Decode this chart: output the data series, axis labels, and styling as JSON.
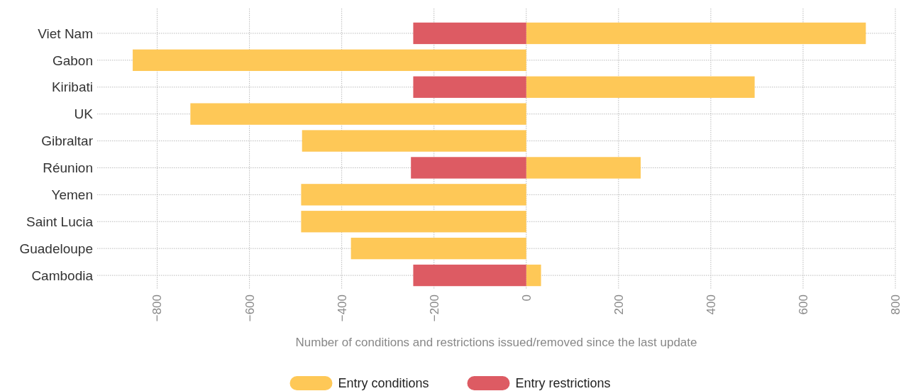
{
  "chart_data": {
    "type": "bar",
    "orientation": "horizontal",
    "xlabel": "Number of conditions and restrictions issued/removed since the last update",
    "categories": [
      "Viet Nam",
      "Gabon",
      "Kiribati",
      "UK",
      "Gibraltar",
      "Réunion",
      "Yemen",
      "Saint Lucia",
      "Guadeloupe",
      "Cambodia"
    ],
    "series": [
      {
        "name": "Entry conditions",
        "color": "#fec857",
        "values": [
          736,
          -853,
          495,
          -728,
          -486,
          248,
          -488,
          -488,
          -380,
          32
        ]
      },
      {
        "name": "Entry restrictions",
        "color": "#dd5b63",
        "values": [
          -245,
          null,
          -245,
          null,
          null,
          -250,
          null,
          null,
          null,
          -245
        ]
      }
    ],
    "xlim": [
      -930,
      800
    ],
    "xticks": [
      {
        "value": -800,
        "label": "−800"
      },
      {
        "value": -600,
        "label": "−600"
      },
      {
        "value": -400,
        "label": "−400"
      },
      {
        "value": -200,
        "label": "−200"
      },
      0,
      200,
      400,
      600,
      800
    ],
    "grid": true,
    "legend": "bottom"
  }
}
